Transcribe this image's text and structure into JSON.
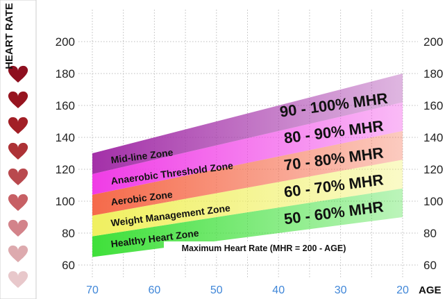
{
  "chart_data": {
    "type": "area",
    "ylabel": "HEART RATE",
    "xlabel": "AGE",
    "formula": "Maximum Heart Rate (MHR = 200 - AGE)",
    "x_ticks": [
      70,
      60,
      50,
      40,
      30,
      20
    ],
    "y_ticks": [
      60,
      80,
      100,
      120,
      140,
      160,
      180,
      200
    ],
    "xlim": [
      70,
      20
    ],
    "ylim": [
      55,
      215
    ],
    "grid": true,
    "bands": [
      {
        "zone": "Healthy Heart Zone",
        "percent": "50 - 60% MHR",
        "color": "#3fe03a",
        "x": [
          70,
          20
        ],
        "lower": [
          65,
          90
        ],
        "upper": [
          78,
          108
        ]
      },
      {
        "zone": "Weight Management Zone",
        "percent": "60 - 70% MHR",
        "color": "#f0f060",
        "x": [
          70,
          20
        ],
        "lower": [
          78,
          108
        ],
        "upper": [
          91,
          126
        ]
      },
      {
        "zone": "Aerobic Zone",
        "percent": "70 - 80% MHR",
        "color": "#f56a4a",
        "x": [
          70,
          20
        ],
        "lower": [
          91,
          126
        ],
        "upper": [
          104,
          144
        ]
      },
      {
        "zone": "Anaerobic Threshold  Zone",
        "percent": "80 - 90% MHR",
        "color": "#f03ce6",
        "x": [
          70,
          20
        ],
        "lower": [
          104,
          144
        ],
        "upper": [
          117,
          162
        ]
      },
      {
        "zone": "Mid-line Zone",
        "percent": "90 - 100% MHR",
        "color": "#a330a8",
        "x": [
          70,
          20
        ],
        "lower": [
          117,
          162
        ],
        "upper": [
          130,
          180
        ]
      }
    ],
    "hearts": {
      "count": 9,
      "colors": [
        "#8e0f1f",
        "#96141f",
        "#a21f26",
        "#ad3236",
        "#b9494e",
        "#c76065",
        "#d3838a",
        "#ddaaae",
        "#e8c8cb"
      ]
    }
  }
}
